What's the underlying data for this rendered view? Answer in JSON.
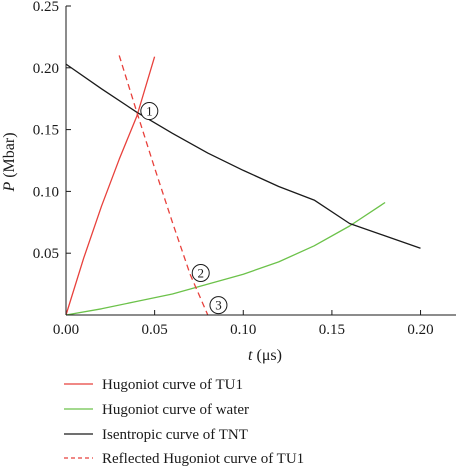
{
  "chart_data": {
    "type": "line",
    "title": "",
    "xlabel": {
      "var": "t",
      "unit": " (μs)"
    },
    "ylabel": {
      "var": "P",
      "unit": " (Mbar)"
    },
    "xlim": [
      0.0,
      0.22
    ],
    "ylim": [
      0.0,
      0.25
    ],
    "xticks": [
      {
        "value": 0.0,
        "label": "0.00"
      },
      {
        "value": 0.05,
        "label": "0.05"
      },
      {
        "value": 0.1,
        "label": "0.10"
      },
      {
        "value": 0.15,
        "label": "0.15"
      },
      {
        "value": 0.2,
        "label": "0.20"
      }
    ],
    "yticks": [
      {
        "value": 0.05,
        "label": "0.05"
      },
      {
        "value": 0.1,
        "label": "0.10"
      },
      {
        "value": 0.15,
        "label": "0.15"
      },
      {
        "value": 0.2,
        "label": "0.20"
      },
      {
        "value": 0.25,
        "label": "0.25"
      }
    ],
    "grid": false,
    "legend_position": "bottom",
    "series": [
      {
        "name": "Hugoniot curve of TU1",
        "color": "#e8413c",
        "dash": "solid",
        "x": [
          0.0,
          0.01,
          0.02,
          0.03,
          0.04,
          0.05
        ],
        "y": [
          0.0,
          0.046,
          0.088,
          0.126,
          0.161,
          0.209
        ]
      },
      {
        "name": "Hugoniot curve of water",
        "color": "#6cc24a",
        "dash": "solid",
        "x": [
          0.0,
          0.02,
          0.04,
          0.06,
          0.08,
          0.1,
          0.12,
          0.14,
          0.16,
          0.18
        ],
        "y": [
          0.0,
          0.005,
          0.011,
          0.017,
          0.025,
          0.033,
          0.043,
          0.056,
          0.072,
          0.091
        ]
      },
      {
        "name": "Isentropic curve of TNT",
        "color": "#1a1a1a",
        "dash": "solid",
        "x": [
          0.0,
          0.02,
          0.04,
          0.06,
          0.08,
          0.1,
          0.12,
          0.14,
          0.16,
          0.18,
          0.2
        ],
        "y": [
          0.203,
          0.183,
          0.164,
          0.147,
          0.131,
          0.117,
          0.104,
          0.093,
          0.074,
          0.064,
          0.054
        ]
      },
      {
        "name": "Reflected Hugoniot curve of TU1",
        "color": "#e8413c",
        "dash": "dashed",
        "x": [
          0.03,
          0.04,
          0.05,
          0.06,
          0.07,
          0.08
        ],
        "y": [
          0.21,
          0.164,
          0.119,
          0.075,
          0.033,
          0.0
        ]
      }
    ],
    "markers": [
      {
        "label": "1",
        "x": 0.047,
        "y": 0.165
      },
      {
        "label": "2",
        "x": 0.076,
        "y": 0.034
      },
      {
        "label": "3",
        "x": 0.086,
        "y": 0.008
      }
    ]
  }
}
